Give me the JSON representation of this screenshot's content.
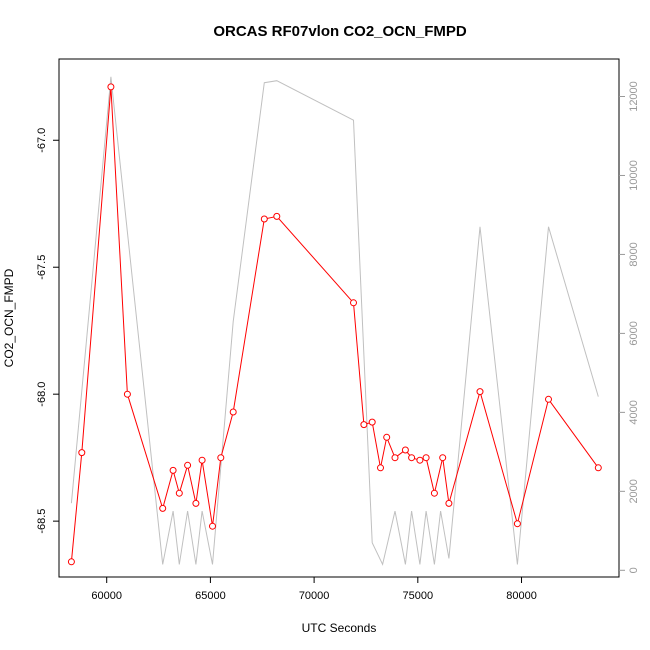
{
  "chart_data": {
    "type": "line",
    "title": "ORCAS RF07vlon CO2_OCN_FMPD",
    "xlabel": "UTC Seconds",
    "ylabel": "CO2_OCN_FMPD",
    "xlim": [
      57700,
      84700
    ],
    "ylim": [
      -68.72,
      -66.68
    ],
    "y2lim": [
      -170,
      12950
    ],
    "x_ticks": [
      60000,
      65000,
      70000,
      75000,
      80000
    ],
    "x_tick_labels": [
      "60000",
      "65000",
      "70000",
      "75000",
      "80000"
    ],
    "y_ticks": [
      -67.0,
      -67.5,
      -68.0,
      -68.5
    ],
    "y_tick_labels": [
      "-67.0",
      "-67.5",
      "-68.0",
      "-68.5"
    ],
    "y2_ticks": [
      0,
      2000,
      4000,
      6000,
      8000,
      10000,
      12000
    ],
    "y2_tick_labels": [
      "0",
      "2000",
      "4000",
      "6000",
      "8000",
      "10000",
      "12000"
    ],
    "grid": false,
    "series": [
      {
        "axis": "left",
        "color": "#ff0000",
        "marker": "open-circle",
        "x": [
          58300,
          58800,
          60200,
          61000,
          62700,
          63200,
          63500,
          63900,
          64300,
          64600,
          65100,
          65500,
          66100,
          67600,
          68200,
          71900,
          72400,
          72800,
          73200,
          73500,
          73900,
          74400,
          74700,
          75100,
          75400,
          75800,
          76200,
          76500,
          78000,
          79800,
          81300,
          83700
        ],
        "y": [
          -68.66,
          -68.23,
          -66.79,
          -68.0,
          -68.45,
          -68.3,
          -68.39,
          -68.28,
          -68.43,
          -68.26,
          -68.52,
          -68.25,
          -68.07,
          -67.31,
          -67.3,
          -67.64,
          -68.12,
          -68.11,
          -68.29,
          -68.17,
          -68.25,
          -68.22,
          -68.25,
          -68.26,
          -68.25,
          -68.39,
          -68.25,
          -68.43,
          -67.99,
          -68.51,
          -68.02,
          -68.29
        ]
      },
      {
        "axis": "right",
        "color": "#c0c0c0",
        "marker": "none",
        "x": [
          58300,
          60200,
          62700,
          63200,
          63500,
          63900,
          64300,
          64600,
          65100,
          66100,
          67600,
          68200,
          71900,
          72800,
          73300,
          73900,
          74400,
          74700,
          75100,
          75400,
          75800,
          76100,
          76500,
          78000,
          79800,
          81300,
          83700
        ],
        "y": [
          1700,
          12500,
          150,
          1500,
          150,
          1500,
          150,
          1500,
          150,
          6300,
          12350,
          12400,
          11400,
          700,
          150,
          1500,
          150,
          1500,
          150,
          1500,
          150,
          1500,
          300,
          8700,
          150,
          8700,
          4400
        ]
      }
    ]
  }
}
